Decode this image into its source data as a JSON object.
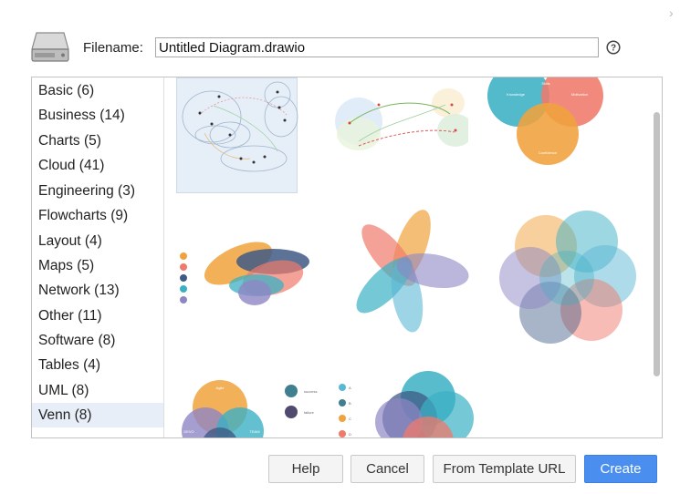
{
  "dialog": {
    "close_glyph": "›",
    "filename_label": "Filename:",
    "filename_value": "Untitled Diagram.drawio",
    "help_glyph": "?"
  },
  "categories": [
    {
      "label": "Basic (6)"
    },
    {
      "label": "Business (14)"
    },
    {
      "label": "Charts (5)"
    },
    {
      "label": "Cloud (41)"
    },
    {
      "label": "Engineering (3)"
    },
    {
      "label": "Flowcharts (9)"
    },
    {
      "label": "Layout (4)"
    },
    {
      "label": "Maps (5)"
    },
    {
      "label": "Network (13)"
    },
    {
      "label": "Other (11)"
    },
    {
      "label": "Software (8)"
    },
    {
      "label": "Tables (4)"
    },
    {
      "label": "UML (8)"
    },
    {
      "label": "Venn (8)"
    }
  ],
  "selected_category": "Venn (8)",
  "templates": [
    {
      "name": "venn-template-1",
      "selected": true
    },
    {
      "name": "venn-template-2",
      "selected": false
    },
    {
      "name": "venn-template-3",
      "selected": false
    },
    {
      "name": "venn-template-4",
      "selected": false
    },
    {
      "name": "venn-template-5",
      "selected": false
    },
    {
      "name": "venn-template-6",
      "selected": false
    },
    {
      "name": "venn-template-7",
      "selected": false
    },
    {
      "name": "venn-template-8",
      "selected": false
    }
  ],
  "thumbnail_text": {
    "t3_left": "Knowledge",
    "t3_top": "Skills",
    "t3_right": "Motivation",
    "t3_bottom": "Confidence",
    "t7_top": "Agile",
    "t7_left": "DEVO",
    "t7_right": "TEAM",
    "t8_success": "success",
    "t8_failure": "failure",
    "t8_a": "A",
    "t8_b": "B",
    "t8_c": "C",
    "t8_d": "D"
  },
  "colors": {
    "accent": "#4a8ff0",
    "selection": "#e8eef7",
    "teal": "#3bb0c4",
    "salmon": "#ef7a6b",
    "orange": "#f0a23c",
    "purple": "#8e86c4",
    "navy": "#3f5b85"
  },
  "buttons": {
    "help": "Help",
    "cancel": "Cancel",
    "from_template_url": "From Template URL",
    "create": "Create"
  }
}
